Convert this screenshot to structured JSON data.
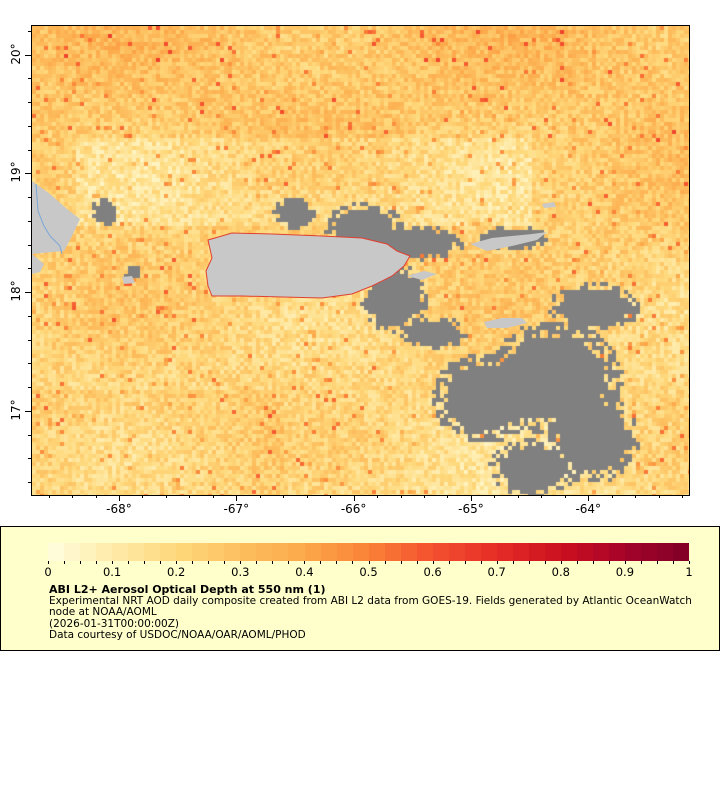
{
  "map": {
    "lat_range": [
      16.3,
      20.25
    ],
    "lon_range": [
      -68.75,
      -63.15
    ],
    "lat_ticks": [
      {
        "value": 20,
        "label": "20°"
      },
      {
        "value": 19,
        "label": "19°"
      },
      {
        "value": 18,
        "label": "18°"
      },
      {
        "value": 17,
        "label": "17°"
      }
    ],
    "lon_ticks": [
      {
        "value": -68,
        "label": "-68°"
      },
      {
        "value": -67,
        "label": "-67°"
      },
      {
        "value": -66,
        "label": "-66°"
      },
      {
        "value": -65,
        "label": "-65°"
      },
      {
        "value": -64,
        "label": "-64°"
      }
    ],
    "land_color": "#c8c8c8",
    "nodata_color": "#808080"
  },
  "legend": {
    "range": [
      0,
      1
    ],
    "colorbar_ticks": [
      "0",
      "0.1",
      "0.2",
      "0.3",
      "0.4",
      "0.5",
      "0.6",
      "0.7",
      "0.8",
      "0.9",
      "1"
    ],
    "color_stops": [
      "#ffffe0",
      "#feeaa8",
      "#fed97c",
      "#fdbf5f",
      "#fca84a",
      "#fa8137",
      "#f4502f",
      "#e52c26",
      "#cc1020",
      "#a5032a",
      "#800026"
    ],
    "title": "ABI L2+ Aerosol Optical Depth at 550 nm (1)",
    "description": "Experimental NRT AOD daily composite created from ABI L2 data from GOES-19. Fields generated by Atlantic OceanWatch node at NOAA/AOML",
    "time": "(2026-01-31T00:00:00Z)",
    "credit": "Data courtesy of USDOC/NOAA/OAR/AOML/PHOD"
  }
}
